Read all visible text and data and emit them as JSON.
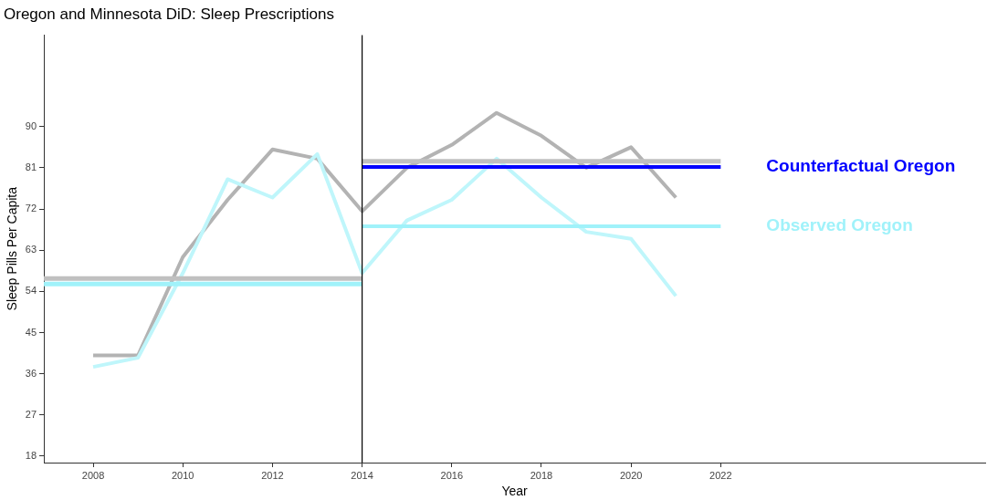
{
  "chart_data": {
    "type": "line",
    "title": "Oregon and Minnesota DiD: Sleep Prescriptions",
    "xlabel": "Year",
    "ylabel": "Sleep Pills Per Capita",
    "xlim": [
      2006.9,
      2027.9
    ],
    "xticks": [
      2008,
      2010,
      2012,
      2014,
      2016,
      2018,
      2020,
      2022
    ],
    "ylim": [
      16.6,
      110
    ],
    "yticks": [
      18,
      27,
      36,
      45,
      54,
      63,
      72,
      81,
      90
    ],
    "grid": false,
    "legend": false,
    "marker": "none",
    "line_style": "solid",
    "ref_lines": [
      {
        "axis": "x",
        "value": 2014,
        "color": "#000000"
      }
    ],
    "series": [
      {
        "color": "#b3b3b3",
        "x": [
          2008,
          2009,
          2010,
          2011,
          2012,
          2013,
          2014,
          2015,
          2016,
          2017,
          2018,
          2019,
          2020,
          2021
        ],
        "values": [
          40,
          40,
          61.5,
          74,
          85,
          83,
          71.5,
          81,
          86,
          93,
          88,
          81,
          85.5,
          74.5
        ]
      },
      {
        "color": "#bff6fb",
        "x": [
          2008,
          2009,
          2010,
          2011,
          2012,
          2013,
          2014,
          2015,
          2016,
          2017,
          2018,
          2019,
          2020,
          2021
        ],
        "values": [
          37.5,
          39.5,
          58,
          78.5,
          74.5,
          84,
          58,
          69.5,
          74,
          83,
          74.5,
          67,
          65.5,
          53
        ]
      },
      {
        "color": "#c0c0c0",
        "x": [
          2006.9,
          2014
        ],
        "values": [
          56.8,
          56.8
        ]
      },
      {
        "color": "#a0f2fa",
        "x": [
          2006.9,
          2014
        ],
        "values": [
          55.6,
          55.6
        ]
      },
      {
        "color": "#c0c0c0",
        "x": [
          2014,
          2022
        ],
        "values": [
          82.4,
          82.4
        ]
      },
      {
        "name": "Counterfactual Oregon",
        "color": "#0000ff",
        "x": [
          2014,
          2022
        ],
        "values": [
          81.2,
          81.2
        ]
      },
      {
        "name": "Observed Oregon",
        "color": "#a0f2fa",
        "x": [
          2014,
          2022
        ],
        "values": [
          68.2,
          68.2
        ]
      }
    ]
  }
}
